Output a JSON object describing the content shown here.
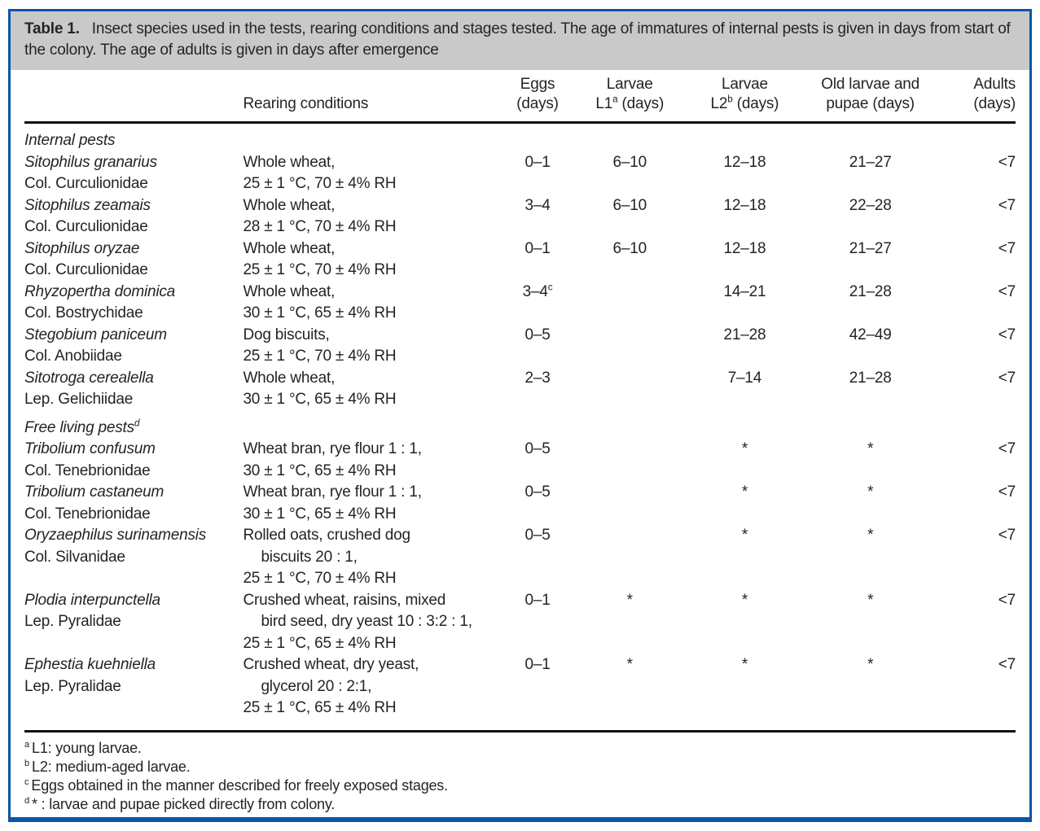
{
  "colors": {
    "frame_blue": "#0a55a5",
    "caption_bg": "#c9c9c9",
    "rule_black": "#101010",
    "text": "#242424"
  },
  "caption": {
    "label": "Table 1.",
    "text": "Insect species used in the tests, rearing conditions and stages tested. The age of immatures of internal pests is given in days from start of the colony. The age of adults is given in days after emergence"
  },
  "header": {
    "species": "",
    "rearing": "Rearing conditions",
    "eggs_line1": "Eggs",
    "eggs_line2": "(days)",
    "l1_line1": "Larvae",
    "l1_pre": "L1",
    "l1_sup": "a",
    "l1_post": " (days)",
    "l2_line1": "Larvae",
    "l2_pre": "L2",
    "l2_sup": "b",
    "l2_post": " (days)",
    "old_line1": "Old larvae and",
    "old_line2": "pupae (days)",
    "adults_line1": "Adults",
    "adults_line2": "(days)"
  },
  "body": [
    {
      "type": "section",
      "text": "Internal pests",
      "sup": ""
    },
    {
      "type": "row",
      "species": "Sitophilus granarius",
      "family": "Col. Curculionidae",
      "rearing": [
        "Whole wheat,",
        "25 ± 1 °C, 70 ± 4% RH"
      ],
      "eggs": "0–1",
      "eggs_sup": "",
      "l1": "6–10",
      "l2": "12–18",
      "old": "21–27",
      "adults": "<7"
    },
    {
      "type": "row",
      "species": "Sitophilus zeamais",
      "family": "Col. Curculionidae",
      "rearing": [
        "Whole wheat,",
        "28 ± 1 °C, 70 ± 4% RH"
      ],
      "eggs": "3–4",
      "eggs_sup": "",
      "l1": "6–10",
      "l2": "12–18",
      "old": "22–28",
      "adults": "<7"
    },
    {
      "type": "row",
      "species": "Sitophilus oryzae",
      "family": "Col. Curculionidae",
      "rearing": [
        "Whole wheat,",
        "25 ± 1 °C, 70 ± 4% RH"
      ],
      "eggs": "0–1",
      "eggs_sup": "",
      "l1": "6–10",
      "l2": "12–18",
      "old": "21–27",
      "adults": "<7"
    },
    {
      "type": "row",
      "species": "Rhyzopertha dominica",
      "family": "Col. Bostrychidae",
      "rearing": [
        "Whole wheat,",
        "30 ± 1 °C, 65 ± 4% RH"
      ],
      "eggs": "3–4",
      "eggs_sup": "c",
      "l1": "",
      "l2": "14–21",
      "old": "21–28",
      "adults": "<7"
    },
    {
      "type": "row",
      "species": "Stegobium paniceum",
      "family": "Col. Anobiidae",
      "rearing": [
        "Dog biscuits,",
        "25 ± 1 °C, 70 ± 4% RH"
      ],
      "eggs": "0–5",
      "eggs_sup": "",
      "l1": "",
      "l2": "21–28",
      "old": "42–49",
      "adults": "<7"
    },
    {
      "type": "row",
      "species": "Sitotroga cerealella",
      "family": "Lep. Gelichiidae",
      "rearing": [
        "Whole wheat,",
        "30 ± 1 °C, 65 ± 4% RH"
      ],
      "eggs": "2–3",
      "eggs_sup": "",
      "l1": "",
      "l2": "7–14",
      "old": "21–28",
      "adults": "<7"
    },
    {
      "type": "section",
      "text": "Free living pests",
      "sup": "d"
    },
    {
      "type": "row",
      "species": "Tribolium confusum",
      "family": "Col. Tenebrionidae",
      "rearing": [
        "Wheat bran, rye flour 1 : 1,",
        "30 ± 1 °C, 65 ± 4% RH"
      ],
      "eggs": "0–5",
      "eggs_sup": "",
      "l1": "",
      "l2": "*",
      "old": "*",
      "adults": "<7"
    },
    {
      "type": "row",
      "species": "Tribolium castaneum",
      "family": "Col. Tenebrionidae",
      "rearing": [
        "Wheat bran, rye flour 1 : 1,",
        "30 ± 1 °C, 65 ± 4% RH"
      ],
      "eggs": "0–5",
      "eggs_sup": "",
      "l1": "",
      "l2": "*",
      "old": "*",
      "adults": "<7"
    },
    {
      "type": "row",
      "species": "Oryzaephilus surinamensis",
      "family": "Col. Silvanidae",
      "rearing": [
        "Rolled oats, crushed dog",
        "biscuits 20 : 1,",
        "25 ± 1 °C, 70 ± 4% RH"
      ],
      "eggs": "0–5",
      "eggs_sup": "",
      "l1": "",
      "l2": "*",
      "old": "*",
      "adults": "<7"
    },
    {
      "type": "row",
      "species": "Plodia interpunctella",
      "family": "Lep. Pyralidae",
      "rearing": [
        "Crushed wheat, raisins, mixed",
        "bird seed, dry yeast 10 : 3:2 : 1,",
        "25 ± 1 °C, 65 ± 4% RH"
      ],
      "eggs": "0–1",
      "eggs_sup": "",
      "l1": "*",
      "l2": "*",
      "old": "*",
      "adults": "<7"
    },
    {
      "type": "row",
      "species": "Ephestia kuehniella",
      "family": "Lep. Pyralidae",
      "rearing": [
        "Crushed wheat, dry yeast,",
        "glycerol 20 : 2:1,",
        "25 ± 1 °C, 65 ± 4% RH"
      ],
      "eggs": "0–1",
      "eggs_sup": "",
      "l1": "*",
      "l2": "*",
      "old": "*",
      "adults": "<7"
    }
  ],
  "footnotes": [
    {
      "marker": "a",
      "text": "L1: young larvae."
    },
    {
      "marker": "b",
      "text": "L2: medium-aged larvae."
    },
    {
      "marker": "c",
      "text": "Eggs obtained in the manner described for freely exposed stages."
    },
    {
      "marker": "d",
      "text": "* : larvae and pupae picked directly from colony."
    }
  ]
}
